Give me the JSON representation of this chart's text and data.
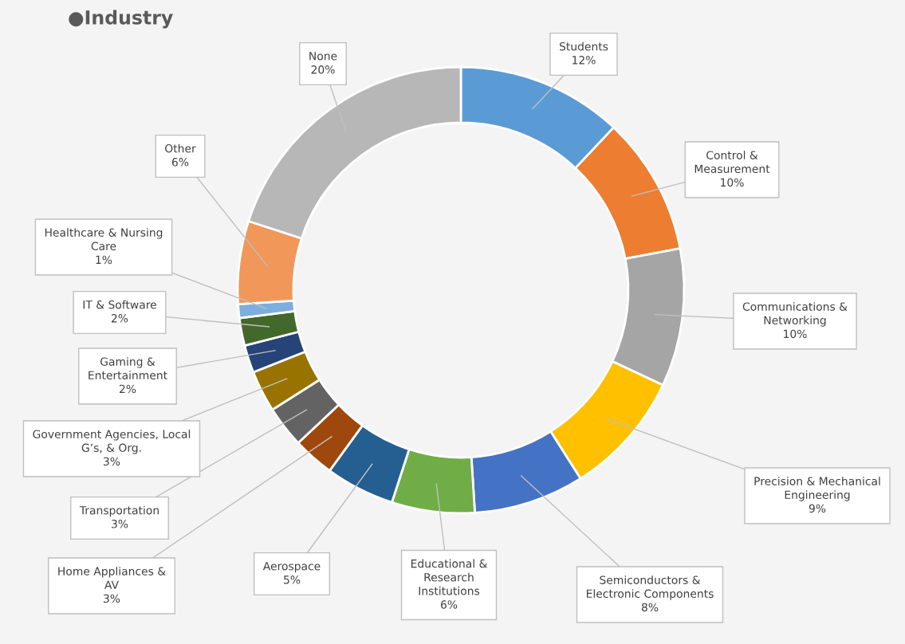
{
  "chart_data": {
    "type": "donut",
    "title": "●Industry",
    "categories": [
      "Students",
      "Control &\nMeasurement",
      "Communications &\nNetworking",
      "Precision & Mechanical\nEngineering",
      "Semiconductors &\nElectronic Components",
      "Educational &\nResearch\nInstitutions",
      "Aerospace",
      "Home Appliances &\nAV",
      "Transportation",
      "Government Agencies, Local\nG’s, & Org.",
      "Gaming &\nEntertainment",
      "IT & Software",
      "Healthcare & Nursing\nCare",
      "Other",
      "None"
    ],
    "values": [
      12,
      10,
      10,
      9,
      8,
      6,
      5,
      3,
      3,
      3,
      2,
      2,
      1,
      6,
      20
    ],
    "value_labels": [
      "12%",
      "10%",
      "10%",
      "9%",
      "8%",
      "6%",
      "5%",
      "3%",
      "3%",
      "3%",
      "2%",
      "2%",
      "1%",
      "6%",
      "20%"
    ],
    "colors": [
      "#5b9bd5",
      "#ed7d31",
      "#a5a5a5",
      "#ffc000",
      "#4472c4",
      "#70ad47",
      "#255e91",
      "#9e480e",
      "#636363",
      "#997300",
      "#264478",
      "#43682b",
      "#7cafdd",
      "#f1975a",
      "#b7b7b7"
    ],
    "legend": false
  }
}
